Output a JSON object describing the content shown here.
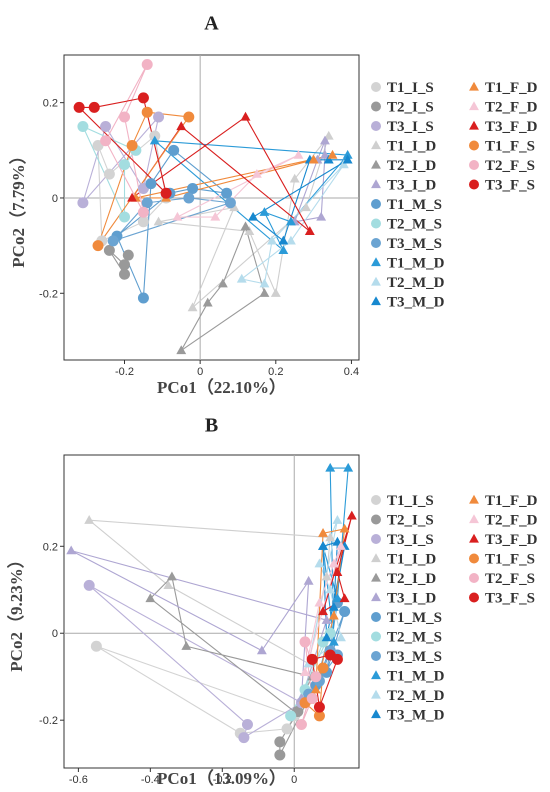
{
  "chart_data": [
    {
      "type": "scatter",
      "title": "A",
      "xlabel": "PCo1（22.10%）",
      "ylabel": "PCo2（7.79%）",
      "xlim": [
        -0.36,
        0.42
      ],
      "ylim": [
        -0.34,
        0.3
      ],
      "xticks": [
        -0.2,
        0,
        0.2,
        0.4
      ],
      "xtick_labels": [
        "-0.2",
        "0",
        "0.2",
        "0.4"
      ],
      "yticks": [
        -0.2,
        0,
        0.2
      ],
      "ytick_labels": [
        "-0.2",
        "0",
        "0.2"
      ],
      "reference_lines": {
        "x": 0,
        "y": 0
      },
      "legend_position": "right",
      "series": [
        {
          "name": "T1_I_S",
          "color": "#d3d3d3",
          "marker": "circle",
          "points": [
            [
              -0.12,
              0.13
            ],
            [
              -0.09,
              0.0
            ],
            [
              -0.15,
              -0.05
            ],
            [
              -0.26,
              -0.09
            ],
            [
              -0.27,
              0.11
            ],
            [
              -0.24,
              0.05
            ]
          ]
        },
        {
          "name": "T2_I_S",
          "color": "#999999",
          "marker": "circle",
          "points": [
            [
              -0.19,
              -0.12
            ],
            [
              -0.2,
              -0.14
            ],
            [
              -0.24,
              -0.11
            ],
            [
              -0.2,
              -0.16
            ]
          ]
        },
        {
          "name": "T3_I_S",
          "color": "#b9b0d8",
          "marker": "circle",
          "points": [
            [
              -0.31,
              -0.01
            ],
            [
              -0.11,
              0.17
            ],
            [
              -0.15,
              0.02
            ],
            [
              -0.25,
              0.15
            ]
          ]
        },
        {
          "name": "T1_I_D",
          "color": "#cfcfcf",
          "marker": "triangle",
          "points": [
            [
              -0.11,
              -0.05
            ],
            [
              0.13,
              -0.07
            ],
            [
              0.2,
              -0.2
            ],
            [
              0.25,
              0.04
            ],
            [
              0.34,
              0.13
            ],
            [
              0.28,
              -0.02
            ],
            [
              -0.02,
              -0.23
            ],
            [
              0.09,
              -0.02
            ]
          ]
        },
        {
          "name": "T2_I_D",
          "color": "#9a9a9a",
          "marker": "triangle",
          "points": [
            [
              -0.05,
              -0.32
            ],
            [
              0.02,
              -0.22
            ],
            [
              0.06,
              -0.18
            ],
            [
              0.12,
              -0.06
            ],
            [
              0.17,
              -0.2
            ]
          ]
        },
        {
          "name": "T3_I_D",
          "color": "#aea6d2",
          "marker": "triangle",
          "points": [
            [
              0.33,
              0.12
            ],
            [
              0.31,
              0.08
            ],
            [
              0.25,
              -0.05
            ],
            [
              0.32,
              -0.04
            ],
            [
              0.33,
              0.09
            ]
          ]
        },
        {
          "name": "T1_M_S",
          "color": "#5f9ecf",
          "marker": "circle",
          "points": [
            [
              -0.07,
              0.1
            ],
            [
              -0.13,
              0.03
            ],
            [
              -0.15,
              -0.21
            ],
            [
              -0.22,
              -0.08
            ],
            [
              -0.08,
              0.01
            ],
            [
              -0.02,
              0.02
            ],
            [
              0.07,
              0.01
            ]
          ]
        },
        {
          "name": "T2_M_S",
          "color": "#a3dde0",
          "marker": "circle",
          "points": [
            [
              -0.31,
              0.15
            ],
            [
              -0.2,
              -0.04
            ],
            [
              -0.2,
              0.07
            ],
            [
              -0.17,
              0.1
            ]
          ]
        },
        {
          "name": "T3_M_S",
          "color": "#6ba4d2",
          "marker": "circle",
          "points": [
            [
              -0.23,
              -0.09
            ],
            [
              -0.14,
              -0.01
            ],
            [
              -0.03,
              0.0
            ],
            [
              0.08,
              -0.01
            ]
          ]
        },
        {
          "name": "T1_M_D",
          "color": "#2b9bd8",
          "marker": "triangle",
          "points": [
            [
              0.39,
              0.09
            ],
            [
              0.24,
              -0.05
            ],
            [
              0.17,
              -0.03
            ],
            [
              0.22,
              -0.11
            ],
            [
              -0.12,
              0.12
            ]
          ]
        },
        {
          "name": "T2_M_D",
          "color": "#b5dcec",
          "marker": "triangle",
          "points": [
            [
              0.19,
              -0.09
            ],
            [
              0.17,
              -0.18
            ],
            [
              0.11,
              -0.17
            ],
            [
              0.24,
              -0.09
            ],
            [
              0.38,
              0.07
            ]
          ]
        },
        {
          "name": "T3_M_D",
          "color": "#1788cf",
          "marker": "triangle",
          "points": [
            [
              0.39,
              0.08
            ],
            [
              0.34,
              0.08
            ],
            [
              0.29,
              0.08
            ],
            [
              0.22,
              -0.09
            ],
            [
              0.14,
              -0.04
            ]
          ]
        },
        {
          "name": "T1_F_D",
          "color": "#f08a3c",
          "marker": "triangle",
          "points": [
            [
              0.3,
              0.08
            ],
            [
              0.35,
              0.09
            ],
            [
              -0.17,
              0.0
            ],
            [
              -0.09,
              0.0
            ]
          ]
        },
        {
          "name": "T2_F_D",
          "color": "#f5c6d6",
          "marker": "triangle",
          "points": [
            [
              0.26,
              0.09
            ],
            [
              0.15,
              0.05
            ],
            [
              0.04,
              -0.04
            ],
            [
              -0.06,
              -0.04
            ]
          ]
        },
        {
          "name": "T3_F_D",
          "color": "#d91f1f",
          "marker": "triangle",
          "points": [
            [
              0.29,
              -0.07
            ],
            [
              0.12,
              0.17
            ],
            [
              -0.18,
              0.0
            ],
            [
              -0.05,
              0.15
            ]
          ]
        },
        {
          "name": "T1_F_S",
          "color": "#f08a3c",
          "marker": "circle",
          "points": [
            [
              -0.27,
              -0.1
            ],
            [
              -0.18,
              0.11
            ],
            [
              -0.14,
              0.18
            ],
            [
              -0.03,
              0.17
            ]
          ]
        },
        {
          "name": "T2_F_S",
          "color": "#f2b3c5",
          "marker": "circle",
          "points": [
            [
              -0.14,
              0.28
            ],
            [
              -0.25,
              0.12
            ],
            [
              -0.15,
              -0.03
            ],
            [
              -0.2,
              0.17
            ]
          ]
        },
        {
          "name": "T3_F_S",
          "color": "#d91f1f",
          "marker": "circle",
          "points": [
            [
              -0.32,
              0.19
            ],
            [
              -0.28,
              0.19
            ],
            [
              -0.15,
              0.21
            ],
            [
              -0.09,
              0.01
            ]
          ]
        }
      ]
    },
    {
      "type": "scatter",
      "title": "B",
      "xlabel": "PCo1（13.09%）",
      "ylabel": "PCo2（9.23%）",
      "xlim": [
        -0.64,
        0.18
      ],
      "ylim": [
        -0.31,
        0.41
      ],
      "xticks": [
        -0.6,
        -0.4,
        -0.2,
        0
      ],
      "xtick_labels": [
        "-0.6",
        "-0.4",
        "-0.2",
        "0"
      ],
      "yticks": [
        -0.2,
        0,
        0.2
      ],
      "ytick_labels": [
        "-0.2",
        "0",
        "0.2"
      ],
      "reference_lines": {
        "x": 0,
        "y": 0
      },
      "legend_position": "right",
      "series": [
        {
          "name": "T1_I_S",
          "color": "#d3d3d3",
          "marker": "circle",
          "points": [
            [
              -0.55,
              -0.03
            ],
            [
              -0.15,
              -0.23
            ],
            [
              -0.02,
              -0.22
            ],
            [
              0.0,
              -0.19
            ]
          ]
        },
        {
          "name": "T2_I_S",
          "color": "#999999",
          "marker": "circle",
          "points": [
            [
              -0.04,
              -0.28
            ],
            [
              -0.04,
              -0.25
            ],
            [
              0.01,
              -0.18
            ],
            [
              0.04,
              -0.15
            ]
          ]
        },
        {
          "name": "T3_I_S",
          "color": "#b9b0d8",
          "marker": "circle",
          "points": [
            [
              -0.57,
              0.11
            ],
            [
              -0.13,
              -0.21
            ],
            [
              -0.14,
              -0.24
            ],
            [
              0.02,
              -0.16
            ]
          ]
        },
        {
          "name": "T1_I_D",
          "color": "#cfcfcf",
          "marker": "triangle",
          "points": [
            [
              -0.57,
              0.26
            ],
            [
              -0.35,
              0.11
            ],
            [
              0.04,
              -0.07
            ],
            [
              0.09,
              0.13
            ],
            [
              0.1,
              0.22
            ]
          ]
        },
        {
          "name": "T2_I_D",
          "color": "#9a9a9a",
          "marker": "triangle",
          "points": [
            [
              -0.4,
              0.08
            ],
            [
              -0.34,
              0.13
            ],
            [
              -0.3,
              -0.03
            ],
            [
              0.05,
              -0.1
            ],
            [
              0.0,
              -0.18
            ]
          ]
        },
        {
          "name": "T3_I_D",
          "color": "#aea6d2",
          "marker": "triangle",
          "points": [
            [
              -0.62,
              0.19
            ],
            [
              -0.09,
              -0.04
            ],
            [
              0.04,
              0.12
            ],
            [
              0.02,
              -0.15
            ],
            [
              0.09,
              0.03
            ]
          ]
        },
        {
          "name": "T1_M_S",
          "color": "#5f9ecf",
          "marker": "circle",
          "points": [
            [
              0.14,
              0.05
            ],
            [
              0.09,
              -0.09
            ],
            [
              0.12,
              0.07
            ],
            [
              0.06,
              -0.12
            ]
          ]
        },
        {
          "name": "T2_M_S",
          "color": "#a3dde0",
          "marker": "circle",
          "points": [
            [
              -0.01,
              -0.19
            ],
            [
              0.03,
              -0.13
            ],
            [
              0.08,
              -0.02
            ],
            [
              0.1,
              0.0
            ]
          ]
        },
        {
          "name": "T3_M_S",
          "color": "#6ba4d2",
          "marker": "circle",
          "points": [
            [
              0.04,
              -0.14
            ],
            [
              0.12,
              -0.05
            ],
            [
              0.1,
              -0.04
            ],
            [
              0.07,
              -0.11
            ]
          ]
        },
        {
          "name": "T1_M_D",
          "color": "#2b9bd8",
          "marker": "triangle",
          "points": [
            [
              0.1,
              0.38
            ],
            [
              0.15,
              0.38
            ],
            [
              0.12,
              0.08
            ],
            [
              0.08,
              0.2
            ],
            [
              0.11,
              -0.02
            ]
          ]
        },
        {
          "name": "T2_M_D",
          "color": "#b5dcec",
          "marker": "triangle",
          "points": [
            [
              0.12,
              0.26
            ],
            [
              0.07,
              0.16
            ],
            [
              0.1,
              0.1
            ],
            [
              0.13,
              -0.01
            ],
            [
              0.04,
              -0.07
            ]
          ]
        },
        {
          "name": "T3_M_D",
          "color": "#1788cf",
          "marker": "triangle",
          "points": [
            [
              0.08,
              0.2
            ],
            [
              0.12,
              0.21
            ],
            [
              0.11,
              0.06
            ],
            [
              0.14,
              0.2
            ],
            [
              0.09,
              -0.01
            ]
          ]
        },
        {
          "name": "T1_F_D",
          "color": "#f08a3c",
          "marker": "triangle",
          "points": [
            [
              0.08,
              0.23
            ],
            [
              0.14,
              0.24
            ],
            [
              0.11,
              0.04
            ],
            [
              0.06,
              -0.13
            ]
          ]
        },
        {
          "name": "T2_F_D",
          "color": "#f5c6d6",
          "marker": "triangle",
          "points": [
            [
              0.13,
              0.2
            ],
            [
              0.11,
              0.16
            ],
            [
              0.07,
              0.07
            ],
            [
              0.03,
              -0.09
            ]
          ]
        },
        {
          "name": "T3_F_D",
          "color": "#d91f1f",
          "marker": "triangle",
          "points": [
            [
              0.16,
              0.27
            ],
            [
              0.12,
              0.14
            ],
            [
              0.14,
              0.08
            ],
            [
              0.08,
              0.05
            ]
          ]
        },
        {
          "name": "T1_F_S",
          "color": "#f08a3c",
          "marker": "circle",
          "points": [
            [
              0.03,
              -0.16
            ],
            [
              0.07,
              -0.19
            ],
            [
              0.08,
              -0.08
            ],
            [
              0.05,
              -0.15
            ]
          ]
        },
        {
          "name": "T2_F_S",
          "color": "#f2b3c5",
          "marker": "circle",
          "points": [
            [
              0.02,
              -0.21
            ],
            [
              0.05,
              -0.15
            ],
            [
              0.03,
              -0.02
            ],
            [
              0.06,
              -0.1
            ]
          ]
        },
        {
          "name": "T3_F_S",
          "color": "#d91f1f",
          "marker": "circle",
          "points": [
            [
              0.07,
              -0.17
            ],
            [
              0.05,
              -0.06
            ],
            [
              0.1,
              -0.05
            ],
            [
              0.12,
              -0.06
            ]
          ]
        }
      ]
    }
  ]
}
